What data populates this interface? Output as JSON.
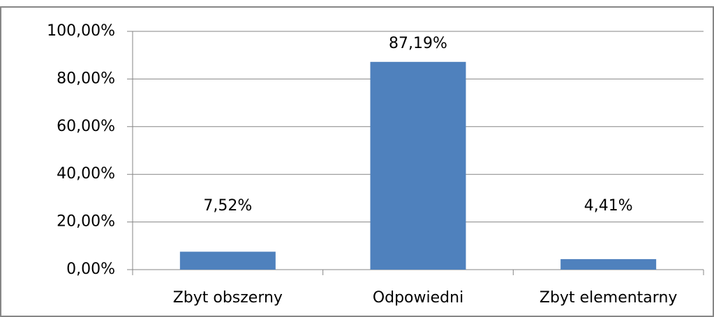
{
  "chart_data": {
    "type": "bar",
    "categories": [
      "Zbyt obszerny",
      "Odpowiedni",
      "Zbyt elementarny"
    ],
    "values": [
      7.52,
      87.19,
      4.41
    ],
    "value_labels": [
      "7,52%",
      "87,19%",
      "4,41%"
    ],
    "color": "#4f81bd",
    "ylim": [
      0,
      100
    ],
    "yticks": [
      {
        "value": 0,
        "label": "0,00%"
      },
      {
        "value": 20,
        "label": "20,00%"
      },
      {
        "value": 40,
        "label": "40,00%"
      },
      {
        "value": 60,
        "label": "60,00%"
      },
      {
        "value": 80,
        "label": "80,00%"
      },
      {
        "value": 100,
        "label": "100,00%"
      }
    ],
    "grid": true
  }
}
